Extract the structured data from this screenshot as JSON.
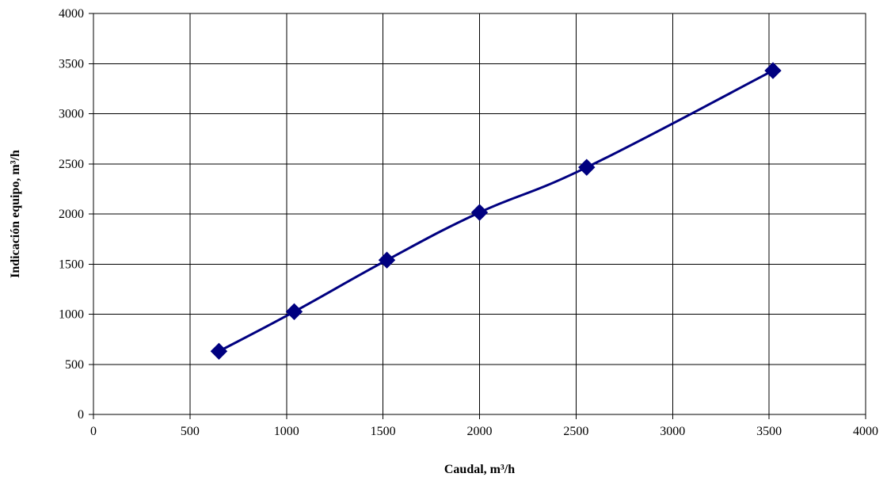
{
  "chart_data": {
    "type": "line",
    "title": "",
    "xlabel": "Caudal, m³/h",
    "ylabel": "Indicación equipo, m³/h",
    "xlim": [
      0,
      4000
    ],
    "ylim": [
      0,
      4000
    ],
    "x_ticks": [
      0,
      500,
      1000,
      1500,
      2000,
      2500,
      3000,
      3500,
      4000
    ],
    "y_ticks": [
      0,
      500,
      1000,
      1500,
      2000,
      2500,
      3000,
      3500,
      4000
    ],
    "grid": true,
    "legend": "none",
    "series": [
      {
        "color": "#000080",
        "marker": "diamond",
        "smooth": true,
        "points": [
          {
            "x": 650,
            "y": 630
          },
          {
            "x": 1040,
            "y": 1025
          },
          {
            "x": 1520,
            "y": 1540
          },
          {
            "x": 2000,
            "y": 2015
          },
          {
            "x": 2555,
            "y": 2465
          },
          {
            "x": 3520,
            "y": 3430
          }
        ]
      }
    ]
  }
}
